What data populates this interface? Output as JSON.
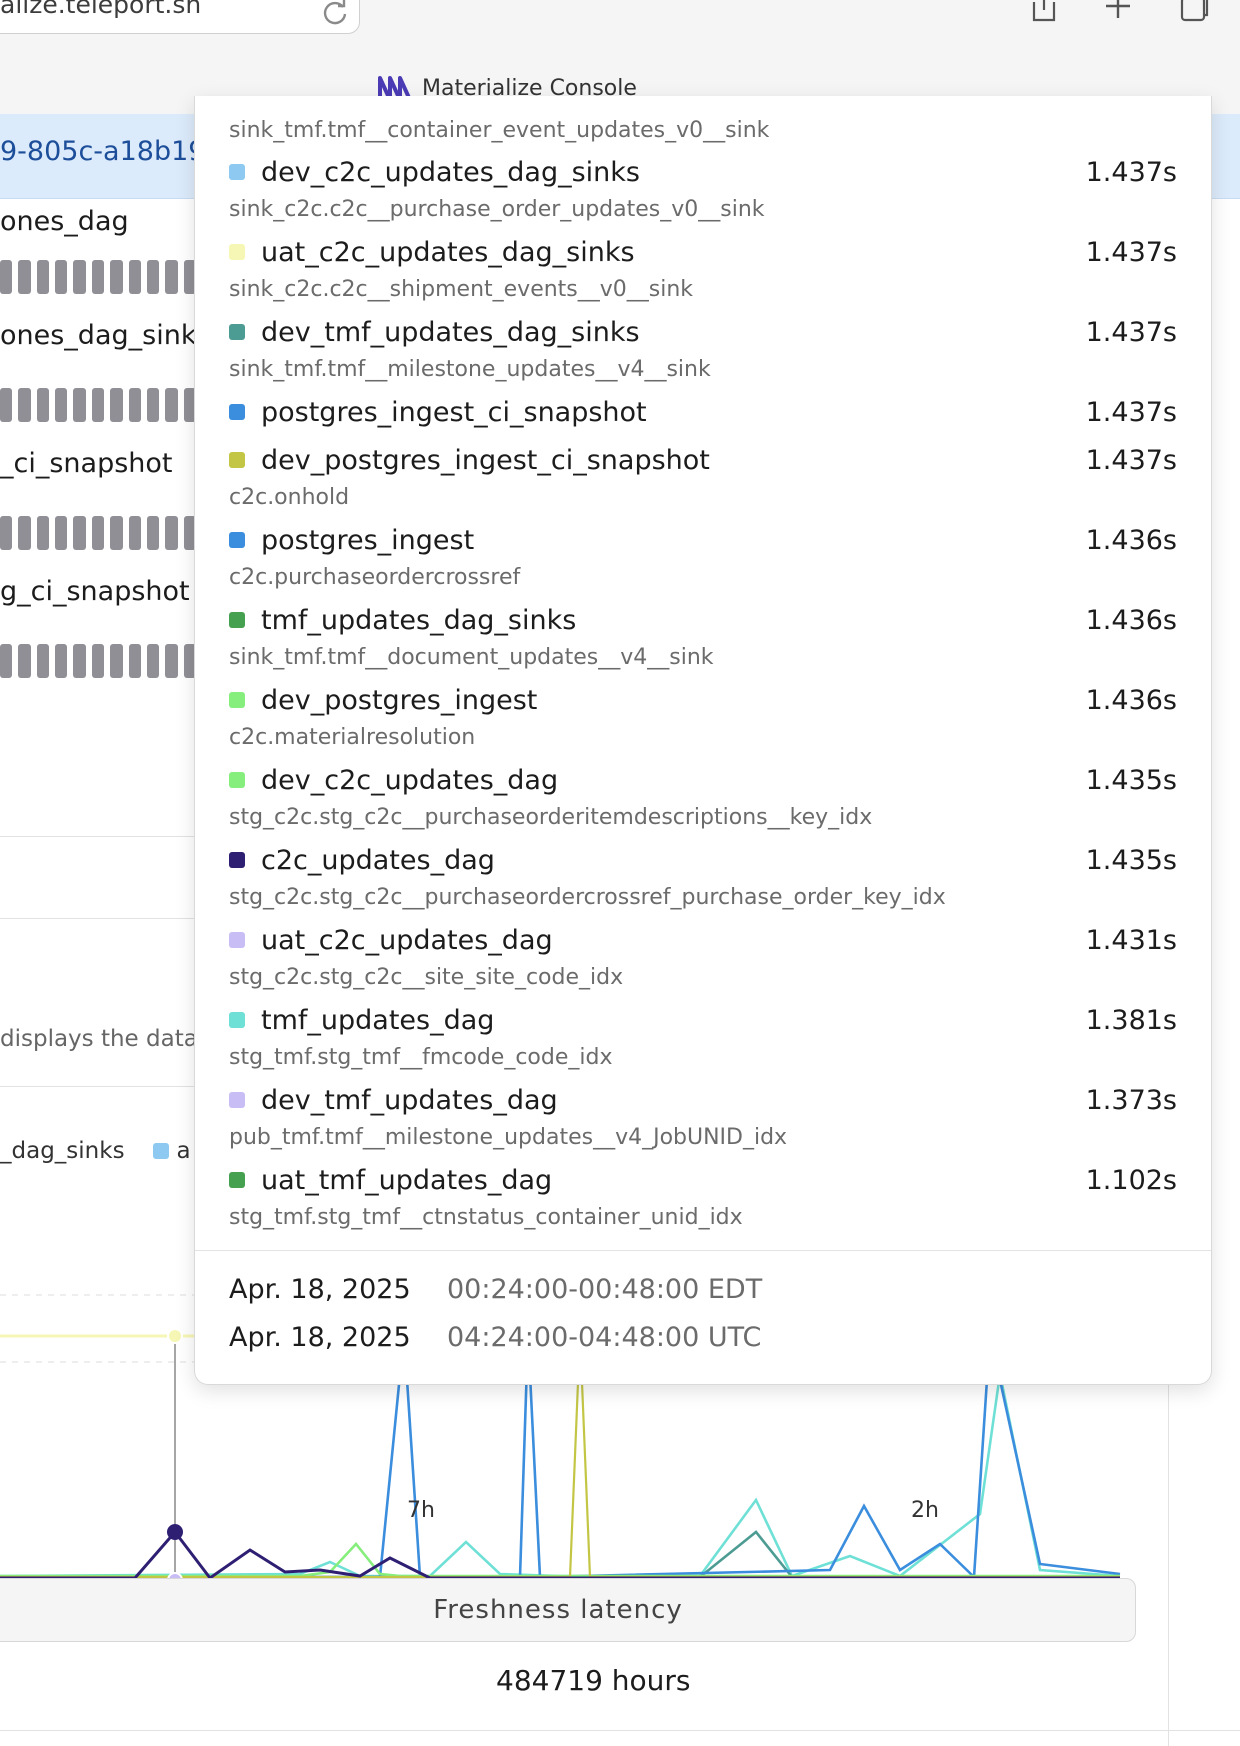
{
  "browser": {
    "url": "alize.teleport.sh",
    "tab_title": "Materialize Console"
  },
  "page": {
    "selected_row": "9-805c-a18b19",
    "object_names": [
      "ones_dag",
      "ones_dag_sinks",
      "_ci_snapshot",
      "g_ci_snapshot"
    ],
    "description_fragment": "displays the datat",
    "legend_fragment": {
      "series": "_dag_sinks",
      "next": "a"
    },
    "x_ticks": [
      "7h",
      "2h"
    ],
    "freshness_tab": "Freshness latency",
    "hours_value": "484719 hours"
  },
  "tooltip": {
    "header_sub": "sink_tmf.tmf__container_event_updates_v0__sink",
    "entries": [
      {
        "name": "dev_c2c_updates_dag_sinks",
        "value": "1.437s",
        "color": "#8ec9f2",
        "sub": "sink_c2c.c2c__purchase_order_updates_v0__sink"
      },
      {
        "name": "uat_c2c_updates_dag_sinks",
        "value": "1.437s",
        "color": "#f6f7b5",
        "sub": "sink_c2c.c2c__shipment_events__v0__sink"
      },
      {
        "name": "dev_tmf_updates_dag_sinks",
        "value": "1.437s",
        "color": "#4d9c94",
        "sub": "sink_tmf.tmf__milestone_updates__v4__sink"
      },
      {
        "name": "postgres_ingest_ci_snapshot",
        "value": "1.437s",
        "color": "#3b8ddd",
        "sub": ""
      },
      {
        "name": "dev_postgres_ingest_ci_snapshot",
        "value": "1.437s",
        "color": "#c3c645",
        "sub": "c2c.onhold"
      },
      {
        "name": "postgres_ingest",
        "value": "1.436s",
        "color": "#3b8ddd",
        "sub": "c2c.purchaseordercrossref"
      },
      {
        "name": "tmf_updates_dag_sinks",
        "value": "1.436s",
        "color": "#45a050",
        "sub": "sink_tmf.tmf__document_updates__v4__sink"
      },
      {
        "name": "dev_postgres_ingest",
        "value": "1.436s",
        "color": "#86ee7c",
        "sub": "c2c.materialresolution"
      },
      {
        "name": "dev_c2c_updates_dag",
        "value": "1.435s",
        "color": "#86ee7c",
        "sub": "stg_c2c.stg_c2c__purchaseorderitemdescriptions__key_idx"
      },
      {
        "name": "c2c_updates_dag",
        "value": "1.435s",
        "color": "#2f1f73",
        "sub": "stg_c2c.stg_c2c__purchaseordercrossref_purchase_order_key_idx"
      },
      {
        "name": "uat_c2c_updates_dag",
        "value": "1.431s",
        "color": "#c8bdf4",
        "sub": "stg_c2c.stg_c2c__site_site_code_idx"
      },
      {
        "name": "tmf_updates_dag",
        "value": "1.381s",
        "color": "#6fe0d6",
        "sub": "stg_tmf.stg_tmf__fmcode_code_idx"
      },
      {
        "name": "dev_tmf_updates_dag",
        "value": "1.373s",
        "color": "#c8bdf4",
        "sub": "pub_tmf.tmf__milestone_updates__v4_JobUNID_idx"
      },
      {
        "name": "uat_tmf_updates_dag",
        "value": "1.102s",
        "color": "#45a050",
        "sub": "stg_tmf.stg_tmf__ctnstatus_container_unid_idx"
      }
    ],
    "time_rows": [
      {
        "date": "Apr. 18, 2025",
        "range": "00:24:00-00:48:00 EDT"
      },
      {
        "date": "Apr. 18, 2025",
        "range": "04:24:00-04:48:00 UTC"
      }
    ]
  },
  "chart_colors": {
    "navy": "#2f1f73",
    "blue": "#3b8ddd",
    "teal": "#6fe0d6",
    "dark_teal": "#4d9c94",
    "green": "#86ee7c",
    "yellow": "#f6f7b5",
    "lavender": "#c8bdf4",
    "olive": "#c3c645"
  }
}
